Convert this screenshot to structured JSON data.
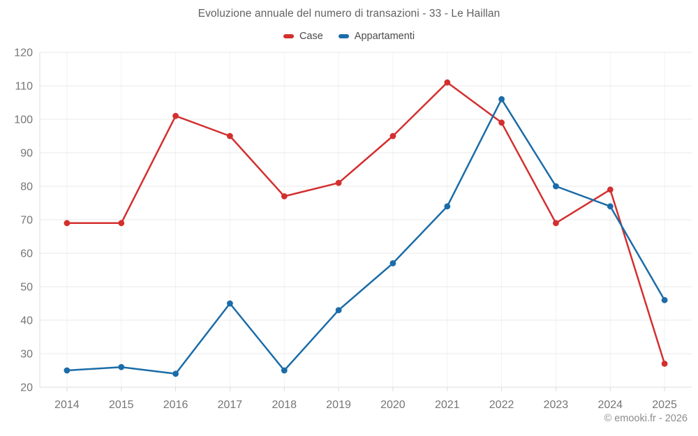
{
  "title": "Evoluzione annuale del numero di transazioni - 33 - Le Haillan",
  "footer": "© emooki.fr - 2026",
  "colors": {
    "case_red": "#d32f2f",
    "appartamenti_blue": "#1b6ca8",
    "title_text": "#616161",
    "tick_text": "#757575",
    "legend_text": "#4a4a4a",
    "footer_text": "#8c8c8c",
    "background": "#ffffff"
  },
  "chart_data": {
    "type": "line",
    "title": "Evoluzione annuale del numero di transazioni - 33 - Le Haillan",
    "categories": [
      "2014",
      "2015",
      "2016",
      "2017",
      "2018",
      "2019",
      "2020",
      "2021",
      "2022",
      "2023",
      "2024",
      "2025"
    ],
    "series": [
      {
        "name": "Case",
        "color": "#d32f2f",
        "values": [
          69,
          69,
          101,
          95,
          77,
          81,
          95,
          111,
          99,
          69,
          79,
          27
        ]
      },
      {
        "name": "Appartamenti",
        "color": "#1b6ca8",
        "values": [
          25,
          26,
          24,
          45,
          25,
          43,
          57,
          74,
          106,
          80,
          74,
          46
        ]
      }
    ],
    "xlabel": "",
    "ylabel": "",
    "ylim": [
      20,
      120
    ],
    "ytick_step": 10,
    "yticks": [
      20,
      30,
      40,
      50,
      60,
      70,
      80,
      90,
      100,
      110,
      120
    ],
    "grid": true,
    "legend_position": "top",
    "marker": "circle"
  }
}
